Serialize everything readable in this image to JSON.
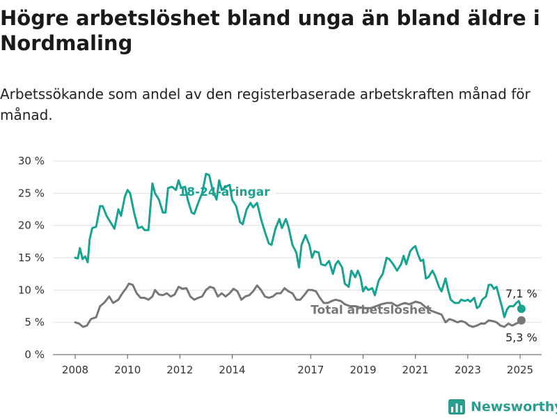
{
  "title": "Högre arbetslöshet bland unga än bland äldre i Nordmaling",
  "subtitle": "Arbetssökande som andel av den registerbaserade arbetskraften månad för månad.",
  "brand": {
    "name": "Newsworthy",
    "icon": "bar-chart-logo-icon",
    "color": "#2a9d8f"
  },
  "chart_data": {
    "type": "line",
    "ylim": [
      0,
      30
    ],
    "yticks": [
      0,
      5,
      10,
      15,
      20,
      25,
      30
    ],
    "yticklabels": [
      "0 %",
      "5 %",
      "10 %",
      "15 %",
      "20 %",
      "25 %",
      "30 %"
    ],
    "xticks": [
      2008,
      2010,
      2012,
      2014,
      2017,
      2019,
      2021,
      2023,
      2025
    ],
    "xticklabels": [
      "2008",
      "2010",
      "2012",
      "2014",
      "2017",
      "2019",
      "2021",
      "2023",
      "2025"
    ],
    "xlim": [
      2007.5,
      2026
    ],
    "grid": "horizontal",
    "series": [
      {
        "name": "18-24-åringar",
        "color": "#17a391",
        "end_label": "7,1 %",
        "points": [
          [
            2008.0,
            15.0
          ],
          [
            2008.1,
            14.9
          ],
          [
            2008.18,
            16.5
          ],
          [
            2008.28,
            14.8
          ],
          [
            2008.38,
            15.2
          ],
          [
            2008.48,
            14.3
          ],
          [
            2008.55,
            17.8
          ],
          [
            2008.65,
            19.6
          ],
          [
            2008.8,
            19.8
          ],
          [
            2008.95,
            23.0
          ],
          [
            2009.05,
            23.0
          ],
          [
            2009.2,
            21.5
          ],
          [
            2009.35,
            20.5
          ],
          [
            2009.5,
            19.5
          ],
          [
            2009.65,
            22.5
          ],
          [
            2009.75,
            21.5
          ],
          [
            2009.9,
            24.5
          ],
          [
            2010.0,
            25.5
          ],
          [
            2010.1,
            25.0
          ],
          [
            2010.25,
            22.0
          ],
          [
            2010.4,
            19.6
          ],
          [
            2010.55,
            19.8
          ],
          [
            2010.65,
            19.3
          ],
          [
            2010.8,
            19.3
          ],
          [
            2010.95,
            26.5
          ],
          [
            2011.05,
            25.0
          ],
          [
            2011.2,
            24.0
          ],
          [
            2011.35,
            22.0
          ],
          [
            2011.45,
            22.0
          ],
          [
            2011.55,
            25.8
          ],
          [
            2011.7,
            26.0
          ],
          [
            2011.85,
            25.5
          ],
          [
            2011.95,
            27.0
          ],
          [
            2012.05,
            25.8
          ],
          [
            2012.2,
            26.0
          ],
          [
            2012.3,
            24.0
          ],
          [
            2012.45,
            22.0
          ],
          [
            2012.55,
            21.8
          ],
          [
            2012.7,
            23.5
          ],
          [
            2012.85,
            25.0
          ],
          [
            2013.0,
            28.0
          ],
          [
            2013.12,
            27.8
          ],
          [
            2013.25,
            25.5
          ],
          [
            2013.4,
            24.0
          ],
          [
            2013.5,
            27.0
          ],
          [
            2013.6,
            25.5
          ],
          [
            2013.75,
            26.0
          ],
          [
            2013.9,
            26.3
          ],
          [
            2014.0,
            24.0
          ],
          [
            2014.15,
            23.0
          ],
          [
            2014.3,
            20.5
          ],
          [
            2014.4,
            20.2
          ],
          [
            2014.55,
            22.5
          ],
          [
            2014.7,
            23.5
          ],
          [
            2014.8,
            22.8
          ],
          [
            2014.95,
            23.5
          ],
          [
            2015.1,
            21.0
          ],
          [
            2015.25,
            19.0
          ],
          [
            2015.4,
            17.2
          ],
          [
            2015.5,
            17.0
          ],
          [
            2015.65,
            19.5
          ],
          [
            2015.8,
            21.0
          ],
          [
            2015.9,
            19.6
          ],
          [
            2016.05,
            21.0
          ],
          [
            2016.15,
            19.8
          ],
          [
            2016.3,
            17.0
          ],
          [
            2016.45,
            15.8
          ],
          [
            2016.55,
            13.5
          ],
          [
            2016.65,
            17.0
          ],
          [
            2016.8,
            18.5
          ],
          [
            2016.95,
            17.0
          ],
          [
            2017.05,
            15.0
          ],
          [
            2017.15,
            16.0
          ],
          [
            2017.3,
            15.8
          ],
          [
            2017.4,
            14.0
          ],
          [
            2017.55,
            13.8
          ],
          [
            2017.7,
            14.5
          ],
          [
            2017.85,
            12.5
          ],
          [
            2017.95,
            14.0
          ],
          [
            2018.05,
            14.5
          ],
          [
            2018.2,
            13.5
          ],
          [
            2018.3,
            11.0
          ],
          [
            2018.45,
            10.5
          ],
          [
            2018.55,
            13.0
          ],
          [
            2018.7,
            12.0
          ],
          [
            2018.8,
            13.0
          ],
          [
            2018.9,
            12.0
          ],
          [
            2019.0,
            9.8
          ],
          [
            2019.1,
            10.5
          ],
          [
            2019.2,
            10.0
          ],
          [
            2019.35,
            10.3
          ],
          [
            2019.45,
            9.2
          ],
          [
            2019.6,
            11.5
          ],
          [
            2019.75,
            12.5
          ],
          [
            2019.9,
            15.0
          ],
          [
            2020.0,
            14.8
          ],
          [
            2020.15,
            14.0
          ],
          [
            2020.3,
            13.0
          ],
          [
            2020.45,
            14.0
          ],
          [
            2020.55,
            15.3
          ],
          [
            2020.65,
            14.0
          ],
          [
            2020.8,
            16.0
          ],
          [
            2020.9,
            16.5
          ],
          [
            2021.0,
            16.8
          ],
          [
            2021.1,
            15.5
          ],
          [
            2021.2,
            14.5
          ],
          [
            2021.3,
            14.7
          ],
          [
            2021.4,
            11.8
          ],
          [
            2021.5,
            12.0
          ],
          [
            2021.65,
            13.0
          ],
          [
            2021.75,
            12.2
          ],
          [
            2021.9,
            10.5
          ],
          [
            2022.0,
            9.8
          ],
          [
            2022.15,
            11.8
          ],
          [
            2022.25,
            10.0
          ],
          [
            2022.35,
            8.5
          ],
          [
            2022.5,
            8.0
          ],
          [
            2022.65,
            8.0
          ],
          [
            2022.75,
            8.5
          ],
          [
            2022.9,
            8.3
          ],
          [
            2023.0,
            8.5
          ],
          [
            2023.1,
            8.2
          ],
          [
            2023.25,
            8.8
          ],
          [
            2023.35,
            7.2
          ],
          [
            2023.45,
            7.5
          ],
          [
            2023.55,
            8.5
          ],
          [
            2023.7,
            9.0
          ],
          [
            2023.8,
            10.8
          ],
          [
            2023.9,
            10.8
          ],
          [
            2024.0,
            10.2
          ],
          [
            2024.1,
            10.5
          ],
          [
            2024.2,
            9.0
          ],
          [
            2024.3,
            7.5
          ],
          [
            2024.4,
            5.8
          ],
          [
            2024.5,
            7.0
          ],
          [
            2024.6,
            7.5
          ],
          [
            2024.75,
            7.5
          ],
          [
            2024.85,
            8.0
          ],
          [
            2024.95,
            8.3
          ],
          [
            2025.05,
            7.1
          ]
        ]
      },
      {
        "name": "Total arbetslöshet",
        "color": "#777777",
        "end_label": "5,3 %",
        "points": [
          [
            2008.0,
            5.0
          ],
          [
            2008.15,
            4.8
          ],
          [
            2008.3,
            4.3
          ],
          [
            2008.45,
            4.5
          ],
          [
            2008.6,
            5.5
          ],
          [
            2008.8,
            5.8
          ],
          [
            2008.95,
            7.5
          ],
          [
            2009.1,
            8.0
          ],
          [
            2009.3,
            9.0
          ],
          [
            2009.45,
            8.0
          ],
          [
            2009.65,
            8.5
          ],
          [
            2009.8,
            9.5
          ],
          [
            2009.95,
            10.3
          ],
          [
            2010.05,
            11.0
          ],
          [
            2010.2,
            10.8
          ],
          [
            2010.35,
            9.5
          ],
          [
            2010.5,
            8.8
          ],
          [
            2010.65,
            8.8
          ],
          [
            2010.8,
            8.5
          ],
          [
            2010.95,
            9.0
          ],
          [
            2011.05,
            10.0
          ],
          [
            2011.2,
            9.3
          ],
          [
            2011.35,
            9.2
          ],
          [
            2011.5,
            9.5
          ],
          [
            2011.65,
            9.0
          ],
          [
            2011.8,
            9.3
          ],
          [
            2011.95,
            10.5
          ],
          [
            2012.1,
            10.2
          ],
          [
            2012.25,
            10.3
          ],
          [
            2012.4,
            9.0
          ],
          [
            2012.55,
            8.5
          ],
          [
            2012.7,
            8.8
          ],
          [
            2012.85,
            9.0
          ],
          [
            2013.0,
            10.0
          ],
          [
            2013.15,
            10.5
          ],
          [
            2013.3,
            10.3
          ],
          [
            2013.45,
            9.0
          ],
          [
            2013.6,
            9.5
          ],
          [
            2013.75,
            9.0
          ],
          [
            2013.9,
            9.5
          ],
          [
            2014.05,
            10.2
          ],
          [
            2014.2,
            9.8
          ],
          [
            2014.35,
            8.5
          ],
          [
            2014.5,
            9.0
          ],
          [
            2014.65,
            9.2
          ],
          [
            2014.8,
            9.8
          ],
          [
            2014.95,
            10.7
          ],
          [
            2015.1,
            10.0
          ],
          [
            2015.25,
            9.0
          ],
          [
            2015.4,
            8.8
          ],
          [
            2015.55,
            9.0
          ],
          [
            2015.7,
            9.5
          ],
          [
            2015.85,
            9.5
          ],
          [
            2016.0,
            10.3
          ],
          [
            2016.15,
            9.8
          ],
          [
            2016.3,
            9.5
          ],
          [
            2016.45,
            8.5
          ],
          [
            2016.6,
            8.5
          ],
          [
            2016.75,
            9.2
          ],
          [
            2016.9,
            10.0
          ],
          [
            2017.05,
            10.0
          ],
          [
            2017.2,
            9.8
          ],
          [
            2017.35,
            8.8
          ],
          [
            2017.5,
            8.0
          ],
          [
            2017.65,
            8.0
          ],
          [
            2017.8,
            8.3
          ],
          [
            2017.95,
            8.5
          ],
          [
            2018.15,
            8.3
          ],
          [
            2018.3,
            7.8
          ],
          [
            2018.5,
            7.5
          ],
          [
            2018.7,
            7.5
          ],
          [
            2018.9,
            7.3
          ],
          [
            2019.1,
            7.2
          ],
          [
            2019.3,
            7.2
          ],
          [
            2019.5,
            7.5
          ],
          [
            2019.7,
            7.8
          ],
          [
            2019.9,
            8.0
          ],
          [
            2020.1,
            8.0
          ],
          [
            2020.3,
            7.5
          ],
          [
            2020.45,
            7.8
          ],
          [
            2020.6,
            8.0
          ],
          [
            2020.75,
            7.8
          ],
          [
            2020.9,
            8.0
          ],
          [
            2021.0,
            8.2
          ],
          [
            2021.2,
            8.0
          ],
          [
            2021.4,
            7.3
          ],
          [
            2021.6,
            6.8
          ],
          [
            2021.8,
            6.5
          ],
          [
            2022.0,
            6.2
          ],
          [
            2022.15,
            5.0
          ],
          [
            2022.3,
            5.5
          ],
          [
            2022.45,
            5.3
          ],
          [
            2022.6,
            5.0
          ],
          [
            2022.75,
            5.2
          ],
          [
            2022.9,
            5.0
          ],
          [
            2023.05,
            4.5
          ],
          [
            2023.2,
            4.3
          ],
          [
            2023.35,
            4.5
          ],
          [
            2023.5,
            4.8
          ],
          [
            2023.65,
            4.8
          ],
          [
            2023.8,
            5.3
          ],
          [
            2023.95,
            5.2
          ],
          [
            2024.1,
            5.0
          ],
          [
            2024.25,
            4.5
          ],
          [
            2024.4,
            4.3
          ],
          [
            2024.55,
            4.8
          ],
          [
            2024.7,
            4.5
          ],
          [
            2024.85,
            4.8
          ],
          [
            2024.95,
            5.0
          ],
          [
            2025.05,
            5.3
          ]
        ]
      }
    ]
  }
}
